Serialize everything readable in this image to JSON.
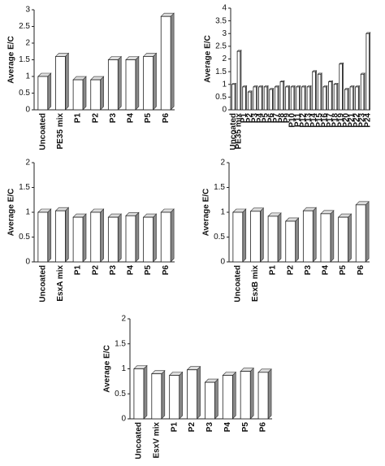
{
  "chart_data": [
    {
      "type": "bar",
      "y_label": "Average E/C",
      "categories": [
        "Uncoated",
        "PE35 mix",
        "P1",
        "P2",
        "P3",
        "P4",
        "P5",
        "P6"
      ],
      "values": [
        1.0,
        1.6,
        0.9,
        0.9,
        1.5,
        1.5,
        1.6,
        2.8
      ],
      "color": "#ffffff",
      "ylim": [
        0,
        3
      ],
      "yticks": [
        0,
        0.5,
        1,
        1.5,
        2,
        2.5,
        3
      ]
    },
    {
      "type": "bar",
      "y_label": "Average E/C",
      "categories": [
        "Uncoated",
        "PE35 mix",
        "P1",
        "P2",
        "P3",
        "P4",
        "P5",
        "P6",
        "P7",
        "P8",
        "P9",
        "P10",
        "P11",
        "P12",
        "P13",
        "P14",
        "P15",
        "P16",
        "P17",
        "P18",
        "P19",
        "P20",
        "P21",
        "P22",
        "P23",
        "P24"
      ],
      "values": [
        1.0,
        2.3,
        0.9,
        0.7,
        0.9,
        0.9,
        0.9,
        0.8,
        0.9,
        1.1,
        0.9,
        0.9,
        0.9,
        0.9,
        0.9,
        1.5,
        1.4,
        0.9,
        1.1,
        1.0,
        1.8,
        0.8,
        0.9,
        0.9,
        1.4,
        3.0
      ],
      "color": "#ffffff",
      "ylim": [
        0,
        4
      ],
      "yticks": [
        0,
        0.5,
        1,
        1.5,
        2,
        2.5,
        3,
        3.5,
        4
      ]
    },
    {
      "type": "bar",
      "y_label": "Average E/C",
      "categories": [
        "Uncoated",
        "EsxA mix",
        "P1",
        "P2",
        "P3",
        "P4",
        "P5",
        "P6"
      ],
      "values": [
        1.0,
        1.03,
        0.9,
        1.0,
        0.9,
        0.93,
        0.9,
        1.0
      ],
      "color": "#ffffff",
      "ylim": [
        0,
        2
      ],
      "yticks": [
        0,
        0.5,
        1,
        1.5,
        2
      ]
    },
    {
      "type": "bar",
      "y_label": "Average E/C",
      "categories": [
        "Uncoated",
        "EsxB mix",
        "P1",
        "P2",
        "P3",
        "P4",
        "P5",
        "P6"
      ],
      "values": [
        1.0,
        1.02,
        0.92,
        0.82,
        1.03,
        0.97,
        0.9,
        1.15
      ],
      "color": "#ffffff",
      "ylim": [
        0,
        2
      ],
      "yticks": [
        0,
        0.5,
        1,
        1.5,
        2
      ]
    },
    {
      "type": "bar",
      "y_label": "Average E/C",
      "categories": [
        "Uncoated",
        "EsxV mix",
        "P1",
        "P2",
        "P3",
        "P4",
        "P5",
        "P6"
      ],
      "values": [
        1.0,
        0.9,
        0.87,
        0.98,
        0.73,
        0.87,
        0.95,
        0.93
      ],
      "color": "#ffffff",
      "ylim": [
        0,
        2
      ],
      "yticks": [
        0,
        0.5,
        1,
        1.5,
        2
      ]
    }
  ]
}
